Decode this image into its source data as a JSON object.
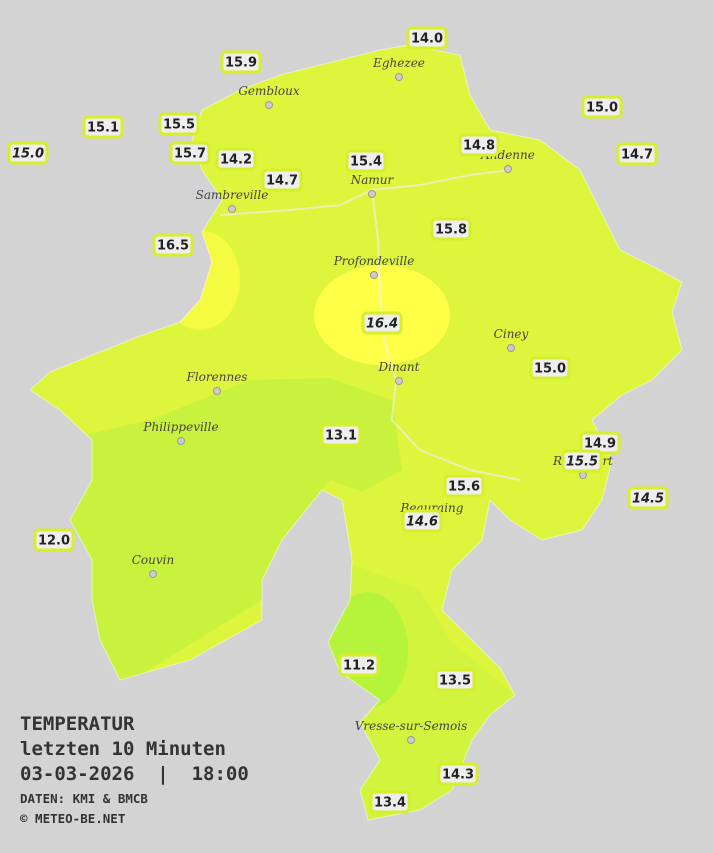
{
  "places": [
    "Eghezee",
    "Gembloux",
    "Andenne",
    "Namur",
    "Sambreville",
    "Profondeville",
    "Ciney",
    "Dinant",
    "Florennes",
    "Philippeville",
    "Rochefort",
    "Beauraing",
    "Couvin",
    "Vresse-sur-Semois"
  ],
  "stations": [
    "14.0",
    "15.9",
    "15.0",
    "15.1",
    "15.5",
    "15.0",
    "15.7",
    "14.2",
    "14.8",
    "14.7",
    "15.4",
    "14.7",
    "15.8",
    "16.5",
    "16.4",
    "15.0",
    "13.1",
    "14.9",
    "15.5",
    "15.6",
    "14.5",
    "14.6",
    "12.0",
    "11.2",
    "13.5",
    "14.3",
    "13.4"
  ],
  "caption": {
    "title": "TEMPERATUR",
    "period": "letzten 10 Minuten",
    "datetime": "03-03-2026  |  18:00",
    "source": "DATEN: KMI & BMCB",
    "copyright": "© METEO-BE.NET"
  }
}
